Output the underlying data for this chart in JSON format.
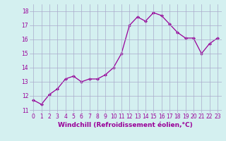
{
  "x": [
    0,
    1,
    2,
    3,
    4,
    5,
    6,
    7,
    8,
    9,
    10,
    11,
    12,
    13,
    14,
    15,
    16,
    17,
    18,
    19,
    20,
    21,
    22,
    23
  ],
  "y": [
    11.7,
    11.4,
    12.1,
    12.5,
    13.2,
    13.4,
    13.0,
    13.2,
    13.2,
    13.5,
    14.0,
    15.0,
    17.0,
    17.6,
    17.3,
    17.9,
    17.7,
    17.1,
    16.5,
    16.1,
    16.1,
    15.0,
    15.7,
    16.1
  ],
  "line_color": "#990099",
  "marker": "D",
  "marker_size": 2,
  "bg_color": "#d4f0f0",
  "grid_color": "#aaaacc",
  "xlabel": "Windchill (Refroidissement éolien,°C)",
  "xlabel_color": "#990099",
  "tick_color": "#990099",
  "ylim": [
    10.8,
    18.5
  ],
  "yticks": [
    11,
    12,
    13,
    14,
    15,
    16,
    17,
    18
  ],
  "xlim": [
    -0.5,
    23.5
  ],
  "xticks": [
    0,
    1,
    2,
    3,
    4,
    5,
    6,
    7,
    8,
    9,
    10,
    11,
    12,
    13,
    14,
    15,
    16,
    17,
    18,
    19,
    20,
    21,
    22,
    23
  ],
  "xtick_labels": [
    "0",
    "1",
    "2",
    "3",
    "4",
    "5",
    "6",
    "7",
    "8",
    "9",
    "10",
    "11",
    "12",
    "13",
    "14",
    "15",
    "16",
    "17",
    "18",
    "19",
    "20",
    "21",
    "22",
    "23"
  ],
  "xlabel_fontsize": 6.5,
  "tick_fontsize": 5.5,
  "line_width": 0.9
}
